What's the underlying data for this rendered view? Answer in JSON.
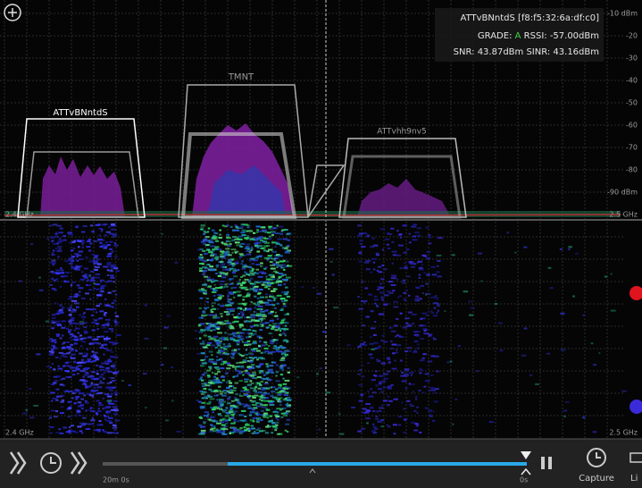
{
  "info": {
    "ssid_line": "ATTvBNntdS [f8:f5:32:6a:df:c0]",
    "grade_label": "GRADE:",
    "grade": "A",
    "rssi": "RSSI: -57.00dBm",
    "snr": "SNR: 43.87dBm",
    "sinr": "SINR: 43.16dBm"
  },
  "networks": [
    "ATTvBNntdS",
    "TMNT",
    "ATTvhh9nv5"
  ],
  "axis": {
    "levels": [
      "-10 dBm",
      "-20",
      "-30",
      "-40",
      "-50",
      "-60",
      "-70",
      "-80",
      "-90 dBm"
    ],
    "spectrum_right": "2.5 GHz",
    "waterfall_left": "2.4 GHz",
    "waterfall_right": "2.5 GHz",
    "spectrum_left": "2.4 GHz"
  },
  "timeline": {
    "start": "20m 0s",
    "end": "0s"
  },
  "toolbar": {
    "capture": "Capture",
    "live": "Li"
  }
}
